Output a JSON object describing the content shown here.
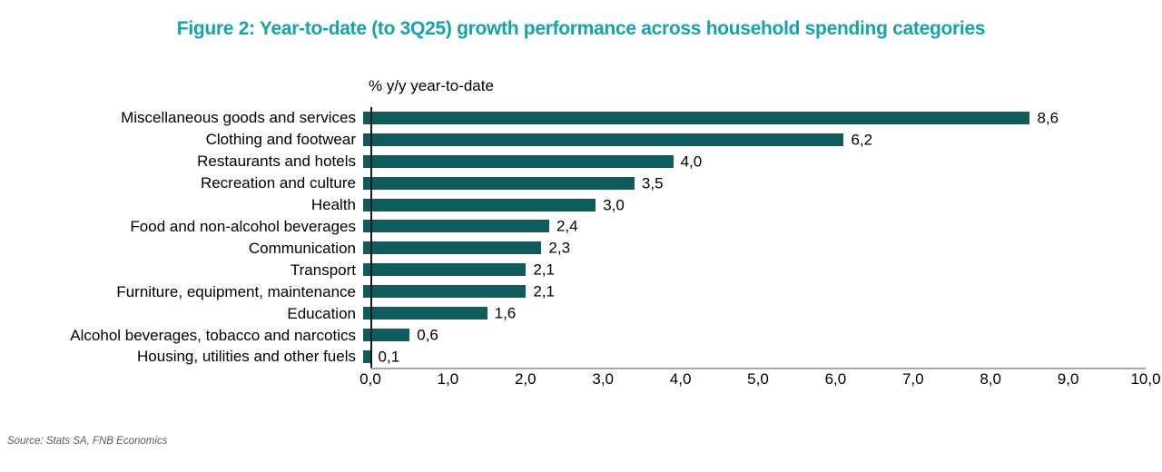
{
  "title": "Figure 2: Year-to-date (to 3Q25) growth performance across household spending categories",
  "axis_title": "% y/y year-to-date",
  "source": "Source: Stats SA, FNB Economics",
  "colors": {
    "title_text": "#14a3ab",
    "bar": "#0e5c5b",
    "x_axis_line": "#a6a6a6",
    "y_axis_line": "#1a1a1a",
    "label_text": "#000000",
    "source_text": "#595959"
  },
  "chart_data": {
    "type": "bar",
    "orientation": "horizontal",
    "title": "Figure 2: Year-to-date (to 3Q25) growth performance across household spending categories",
    "axis_label": "% y/y year-to-date",
    "categories": [
      "Miscellaneous goods and services",
      "Clothing and footwear",
      "Restaurants and hotels",
      "Recreation and culture",
      "Health",
      "Food and non-alcohol beverages",
      "Communication",
      "Transport",
      "Furniture, equipment, maintenance",
      "Education",
      "Alcohol beverages, tobacco and narcotics",
      "Housing, utilities and other fuels"
    ],
    "values": [
      8.6,
      6.2,
      4.0,
      3.5,
      3.0,
      2.4,
      2.3,
      2.1,
      2.1,
      1.6,
      0.6,
      0.1
    ],
    "value_labels": [
      "8,6",
      "6,2",
      "4,0",
      "3,5",
      "3,0",
      "2,4",
      "2,3",
      "2,1",
      "2,1",
      "1,6",
      "0,6",
      "0,1"
    ],
    "x_ticks": [
      "0,0",
      "1,0",
      "2,0",
      "3,0",
      "4,0",
      "5,0",
      "6,0",
      "7,0",
      "8,0",
      "9,0",
      "10,0"
    ],
    "xlim": [
      0,
      10
    ],
    "grid": false,
    "legend": false,
    "decimal_separator": ","
  }
}
